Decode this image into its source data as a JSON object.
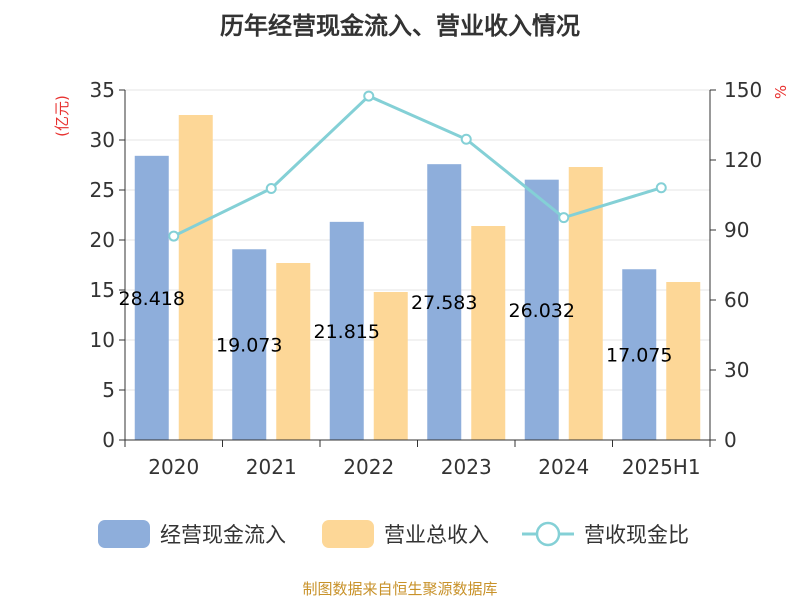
{
  "chart_data": {
    "type": "bar",
    "title": "历年经营现金流入、营业收入情况",
    "categories": [
      "2020",
      "2021",
      "2022",
      "2023",
      "2024",
      "2025H1"
    ],
    "series": [
      {
        "name": "经营现金流入",
        "kind": "bar",
        "axis": "left",
        "color": "#8eaedb",
        "values": [
          28.418,
          19.073,
          21.815,
          27.583,
          26.032,
          17.075
        ]
      },
      {
        "name": "营业总收入",
        "kind": "bar",
        "axis": "left",
        "color": "#fdd797",
        "values": [
          32.5,
          17.7,
          14.8,
          21.4,
          27.3,
          15.8
        ]
      },
      {
        "name": "营收现金比",
        "kind": "line",
        "axis": "right",
        "color": "#84d0d6",
        "values": [
          87.4,
          107.8,
          147.4,
          128.9,
          95.3,
          108.1
        ]
      }
    ],
    "data_labels": [
      "28.418",
      "19.073",
      "21.815",
      "27.583",
      "26.032",
      "17.075"
    ],
    "y_left": {
      "label": "(亿元)",
      "ylim": [
        0,
        35
      ],
      "ticks": [
        "0",
        "5",
        "10",
        "15",
        "20",
        "25",
        "30",
        "35"
      ]
    },
    "y_right": {
      "label": "%",
      "ylim": [
        0,
        150
      ],
      "ticks": [
        "0",
        "30",
        "60",
        "90",
        "120",
        "150"
      ]
    },
    "grid": true,
    "legend_position": "bottom",
    "source": "制图数据来自恒生聚源数据库"
  }
}
